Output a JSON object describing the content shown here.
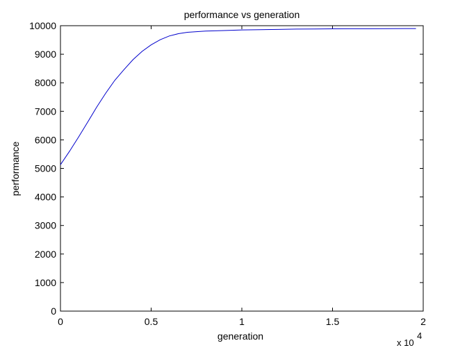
{
  "chart_data": {
    "type": "line",
    "title": "performance vs generation",
    "xlabel": "generation",
    "ylabel": "performance",
    "x_exponent_label": "x 10",
    "x_exponent_power": "4",
    "xlim": [
      0,
      20000
    ],
    "ylim": [
      0,
      10000
    ],
    "x_ticks": [
      0,
      5000,
      10000,
      15000,
      20000
    ],
    "x_tick_labels": [
      "0",
      "0.5",
      "1",
      "1.5",
      "2"
    ],
    "y_ticks": [
      0,
      1000,
      2000,
      3000,
      4000,
      5000,
      6000,
      7000,
      8000,
      9000,
      10000
    ],
    "y_tick_labels": [
      "0",
      "1000",
      "2000",
      "3000",
      "4000",
      "5000",
      "6000",
      "7000",
      "8000",
      "9000",
      "10000"
    ],
    "grid": false,
    "series": [
      {
        "color": "#0000cc",
        "x": [
          0,
          500,
          1000,
          1500,
          2000,
          2500,
          3000,
          3500,
          4000,
          4500,
          5000,
          5500,
          6000,
          6500,
          7000,
          8000,
          9000,
          10000,
          11000,
          12000,
          13000,
          14000,
          15000,
          16000,
          17000,
          18000,
          19000,
          19600
        ],
        "y": [
          5130,
          5600,
          6100,
          6620,
          7150,
          7640,
          8090,
          8460,
          8810,
          9100,
          9330,
          9510,
          9640,
          9720,
          9770,
          9810,
          9830,
          9850,
          9860,
          9870,
          9880,
          9885,
          9890,
          9893,
          9895,
          9897,
          9899,
          9900
        ]
      }
    ]
  }
}
